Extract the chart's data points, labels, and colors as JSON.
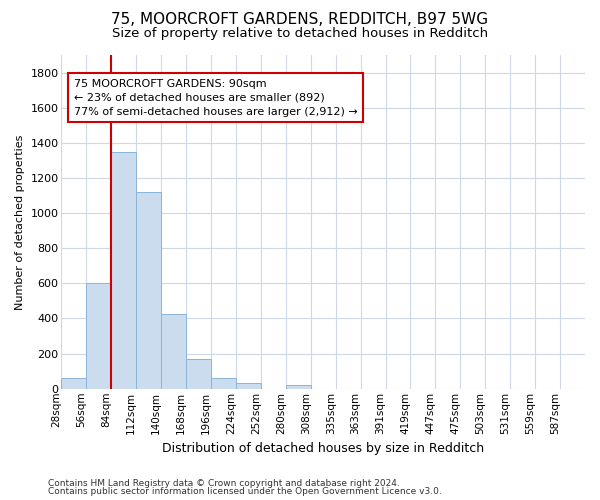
{
  "title1": "75, MOORCROFT GARDENS, REDDITCH, B97 5WG",
  "title2": "Size of property relative to detached houses in Redditch",
  "xlabel": "Distribution of detached houses by size in Redditch",
  "ylabel": "Number of detached properties",
  "footer1": "Contains HM Land Registry data © Crown copyright and database right 2024.",
  "footer2": "Contains public sector information licensed under the Open Government Licence v3.0.",
  "bin_labels": [
    "28sqm",
    "56sqm",
    "84sqm",
    "112sqm",
    "140sqm",
    "168sqm",
    "196sqm",
    "224sqm",
    "252sqm",
    "280sqm",
    "308sqm",
    "335sqm",
    "363sqm",
    "391sqm",
    "419sqm",
    "447sqm",
    "475sqm",
    "503sqm",
    "531sqm",
    "559sqm",
    "587sqm"
  ],
  "bar_values": [
    60,
    600,
    1350,
    1120,
    425,
    170,
    60,
    35,
    0,
    20,
    0,
    0,
    0,
    0,
    0,
    0,
    0,
    0,
    0,
    0,
    0
  ],
  "bar_color": "#ccdcef",
  "bar_edge_color": "#8ab4d8",
  "red_line_x": 2,
  "annotation_text": "75 MOORCROFT GARDENS: 90sqm\n← 23% of detached houses are smaller (892)\n77% of semi-detached houses are larger (2,912) →",
  "annotation_box_facecolor": "#ffffff",
  "annotation_box_edgecolor": "#cc0000",
  "ylim": [
    0,
    1900
  ],
  "yticks": [
    0,
    200,
    400,
    600,
    800,
    1000,
    1200,
    1400,
    1600,
    1800
  ],
  "fig_bg": "#ffffff",
  "plot_bg": "#ffffff",
  "grid_color": "#d0d8e8",
  "title1_fontsize": 11,
  "title2_fontsize": 9.5,
  "xlabel_fontsize": 9,
  "ylabel_fontsize": 8,
  "footer_fontsize": 6.5,
  "annot_fontsize": 8
}
